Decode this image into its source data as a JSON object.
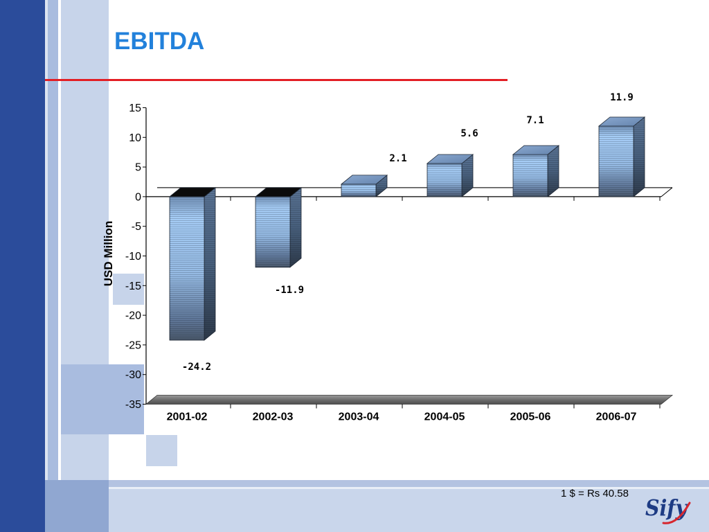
{
  "slide": {
    "footnote": "1 $ = Rs 40.58",
    "logo_text": "Sify"
  },
  "colors": {
    "title": "#2281db",
    "title_rule": "#e31e24",
    "sidebar": "#2b4c9b",
    "bar_front_light": "#a6cdf6",
    "bar_front_dark": "#4a586b",
    "bar_side_dark": "#2d3949",
    "bar_top_negative": "#0b0b0b",
    "floor": "#6e6e6e",
    "logo_blue": "#1d3b84",
    "logo_red": "#d7262e"
  },
  "chart_data": {
    "type": "bar",
    "three_d": true,
    "title": "EBITDA",
    "ylabel": "USD Million",
    "categories": [
      "2001-02",
      "2002-03",
      "2003-04",
      "2004-05",
      "2005-06",
      "2006-07"
    ],
    "series": [
      {
        "values": [
          -24.2,
          -11.9,
          2.1,
          5.6,
          7.1,
          11.9
        ]
      }
    ],
    "ylim": [
      -35,
      15
    ],
    "yticks": [
      15,
      10,
      5,
      0,
      -5,
      -10,
      -15,
      -20,
      -25,
      -30,
      -35
    ],
    "data_labels": true,
    "grid": false,
    "legend": "none"
  }
}
